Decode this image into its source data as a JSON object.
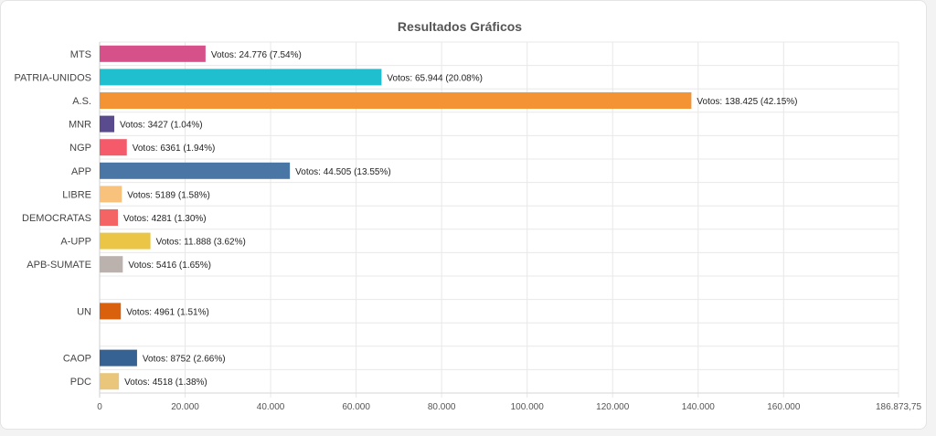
{
  "chart_data": {
    "type": "bar",
    "orientation": "horizontal",
    "title": "Resultados Gráficos",
    "xlim": [
      0,
      186873.75
    ],
    "xticks": [
      {
        "value": 0,
        "label": "0"
      },
      {
        "value": 20000,
        "label": "20.000"
      },
      {
        "value": 40000,
        "label": "40.000"
      },
      {
        "value": 60000,
        "label": "60.000"
      },
      {
        "value": 80000,
        "label": "80.000"
      },
      {
        "value": 100000,
        "label": "100.000"
      },
      {
        "value": 120000,
        "label": "120.000"
      },
      {
        "value": 140000,
        "label": "140.000"
      },
      {
        "value": 160000,
        "label": "160.000"
      },
      {
        "value": 186873.75,
        "label": "186.873,75"
      }
    ],
    "grid": true,
    "bars": [
      {
        "category": "MTS",
        "value": 24776,
        "label": "Votos: 24.776 (7.54%)",
        "color": "#d6518a"
      },
      {
        "category": "PATRIA-UNIDOS",
        "value": 65944,
        "label": "Votos: 65.944 (20.08%)",
        "color": "#1fbfd0"
      },
      {
        "category": "A.S.",
        "value": 138425,
        "label": "Votos: 138.425 (42.15%)",
        "color": "#f39333"
      },
      {
        "category": "MNR",
        "value": 3427,
        "label": "Votos: 3427 (1.04%)",
        "color": "#5a4a8e"
      },
      {
        "category": "NGP",
        "value": 6361,
        "label": "Votos: 6361 (1.94%)",
        "color": "#f55a6a"
      },
      {
        "category": "APP",
        "value": 44505,
        "label": "Votos: 44.505 (13.55%)",
        "color": "#4a76a6"
      },
      {
        "category": "LIBRE",
        "value": 5189,
        "label": "Votos: 5189 (1.58%)",
        "color": "#f9c27c"
      },
      {
        "category": "DEMOCRATAS",
        "value": 4281,
        "label": "Votos: 4281 (1.30%)",
        "color": "#f56464"
      },
      {
        "category": "A-UPP",
        "value": 11888,
        "label": "Votos: 11.888 (3.62%)",
        "color": "#eac546"
      },
      {
        "category": "APB-SUMATE",
        "value": 5416,
        "label": "Votos: 5416 (1.65%)",
        "color": "#bbb1ad"
      },
      {
        "category": "",
        "value": 0,
        "label": "",
        "color": ""
      },
      {
        "category": "UN",
        "value": 4961,
        "label": "Votos: 4961 (1.51%)",
        "color": "#d9600c"
      },
      {
        "category": "",
        "value": 0,
        "label": "",
        "color": ""
      },
      {
        "category": "CAOP",
        "value": 8752,
        "label": "Votos: 8752 (2.66%)",
        "color": "#356293"
      },
      {
        "category": "PDC",
        "value": 4518,
        "label": "Votos: 4518 (1.38%)",
        "color": "#e9c67a"
      }
    ]
  }
}
